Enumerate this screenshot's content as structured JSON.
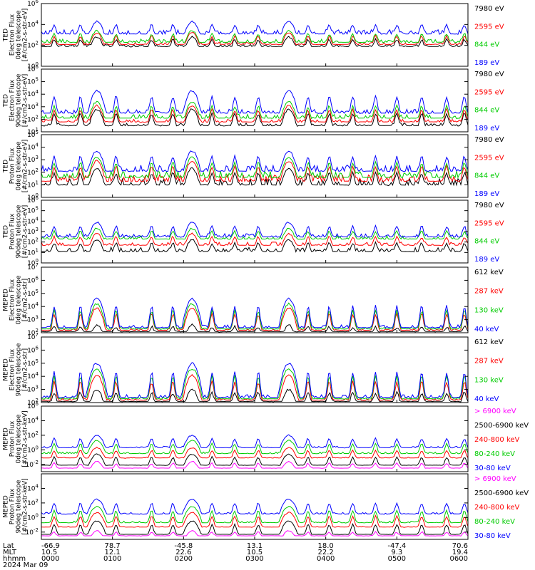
{
  "chart_data": [
    {
      "type": "line",
      "ylabel": [
        "TED",
        "Electron Flux",
        "0deg telescope",
        "[#/cm2-s-str-eV]"
      ],
      "log_y": true,
      "ylim_exp": [
        0,
        6
      ],
      "y_ticks_exp": [
        0,
        2,
        4,
        6
      ],
      "series": [
        {
          "name": "7980 eV",
          "color": "#000000",
          "base": 1.8,
          "peak": 2.8,
          "noise": 0.3
        },
        {
          "name": "2595 eV",
          "color": "#ff0000",
          "base": 2.0,
          "peak": 3.2,
          "noise": 0.3
        },
        {
          "name": "844 eV",
          "color": "#00cc00",
          "base": 2.2,
          "peak": 3.4,
          "noise": 0.4
        },
        {
          "name": "189 eV",
          "color": "#0000ff",
          "base": 3.0,
          "peak": 4.3,
          "noise": 0.5
        }
      ]
    },
    {
      "type": "line",
      "ylabel": [
        "TED",
        "Electron Flux",
        "90deg telescope",
        "[#/cm2-s-str-eV]"
      ],
      "log_y": true,
      "ylim_exp": [
        1,
        6
      ],
      "y_ticks_exp": [
        1,
        2,
        3,
        4,
        5,
        6
      ],
      "series": [
        {
          "name": "7980 eV",
          "color": "#000000",
          "base": 1.4,
          "peak": 2.8,
          "noise": 0.3
        },
        {
          "name": "2595 eV",
          "color": "#ff0000",
          "base": 1.7,
          "peak": 3.1,
          "noise": 0.3
        },
        {
          "name": "844 eV",
          "color": "#00cc00",
          "base": 2.0,
          "peak": 3.4,
          "noise": 0.4
        },
        {
          "name": "189 eV",
          "color": "#0000ff",
          "base": 2.4,
          "peak": 4.3,
          "noise": 0.4
        }
      ]
    },
    {
      "type": "line",
      "ylabel": [
        "TED",
        "Proton Flux",
        "0deg telescope",
        "[#/cm2-s-str-eV]"
      ],
      "log_y": true,
      "ylim_exp": [
        0,
        5
      ],
      "y_ticks_exp": [
        0,
        1,
        2,
        3,
        4,
        5
      ],
      "series": [
        {
          "name": "7980 eV",
          "color": "#000000",
          "base": 0.9,
          "peak": 2.3,
          "noise": 0.6
        },
        {
          "name": "2595 eV",
          "color": "#ff0000",
          "base": 1.2,
          "peak": 2.9,
          "noise": 0.6
        },
        {
          "name": "844 eV",
          "color": "#00cc00",
          "base": 1.5,
          "peak": 3.2,
          "noise": 0.6
        },
        {
          "name": "189 eV",
          "color": "#0000ff",
          "base": 2.0,
          "peak": 3.7,
          "noise": 0.6
        }
      ]
    },
    {
      "type": "line",
      "ylabel": [
        "TED",
        "Proton Flux",
        "90deg telescope",
        "[#/cm2-s-str-eV]"
      ],
      "log_y": true,
      "ylim_exp": [
        0,
        6
      ],
      "y_ticks_exp": [
        0,
        1,
        2,
        3,
        4,
        5,
        6
      ],
      "series": [
        {
          "name": "7980 eV",
          "color": "#000000",
          "base": 1.0,
          "peak": 2.2,
          "noise": 0.5
        },
        {
          "name": "2595 eV",
          "color": "#ff0000",
          "base": 1.6,
          "peak": 2.8,
          "noise": 0.4
        },
        {
          "name": "844 eV",
          "color": "#00cc00",
          "base": 2.2,
          "peak": 3.3,
          "noise": 0.4
        },
        {
          "name": "189 eV",
          "color": "#0000ff",
          "base": 2.4,
          "peak": 3.9,
          "noise": 0.4
        }
      ]
    },
    {
      "type": "line",
      "ylabel": [
        "MEPED",
        "Electron Flux",
        "0deg telescope",
        "[#/cm2-s-str]"
      ],
      "log_y": true,
      "ylim_exp": [
        2,
        7
      ],
      "y_ticks_exp": [
        2,
        3,
        4,
        5,
        6,
        7
      ],
      "series": [
        {
          "name": "612 keV",
          "color": "#000000",
          "base": 2.0,
          "peak": 2.6,
          "noise": 0.1
        },
        {
          "name": "287 keV",
          "color": "#ff0000",
          "base": 2.1,
          "peak": 3.9,
          "noise": 0.2
        },
        {
          "name": "130 keV",
          "color": "#00cc00",
          "base": 2.2,
          "peak": 4.2,
          "noise": 0.2
        },
        {
          "name": "40 keV",
          "color": "#0000ff",
          "base": 2.3,
          "peak": 4.6,
          "noise": 0.3
        }
      ]
    },
    {
      "type": "line",
      "ylabel": [
        "MEPED",
        "Electron Flux",
        "90deg telescope",
        "[#/cm2-s-str]"
      ],
      "log_y": true,
      "ylim_exp": [
        2,
        7
      ],
      "y_ticks_exp": [
        2,
        3,
        4,
        5,
        6,
        7
      ],
      "series": [
        {
          "name": "612 keV",
          "color": "#000000",
          "base": 2.0,
          "peak": 3.0,
          "noise": 0.1
        },
        {
          "name": "287 keV",
          "color": "#ff0000",
          "base": 2.1,
          "peak": 4.1,
          "noise": 0.2
        },
        {
          "name": "130 keV",
          "color": "#00cc00",
          "base": 2.2,
          "peak": 4.6,
          "noise": 0.2
        },
        {
          "name": "40 keV",
          "color": "#0000ff",
          "base": 2.3,
          "peak": 5.0,
          "noise": 0.3
        }
      ]
    },
    {
      "type": "line",
      "ylabel": [
        "MEPED",
        "Proton Flux",
        "0deg telescope",
        "[#/cm2-s-str-keV]"
      ],
      "log_y": true,
      "ylim_exp": [
        -3,
        6
      ],
      "y_ticks_exp": [
        -2,
        0,
        2,
        4,
        6
      ],
      "series": [
        {
          "name": "> 6900 keV",
          "color": "#ff00ff",
          "base": -2.6,
          "peak": -1.6,
          "noise": 0.1
        },
        {
          "name": "2500-6900 keV",
          "color": "#000000",
          "base": -2.2,
          "peak": -0.6,
          "noise": 0.1
        },
        {
          "name": "240-800 keV",
          "color": "#ff0000",
          "base": -1.2,
          "peak": 0.3,
          "noise": 0.2
        },
        {
          "name": "80-240 keV",
          "color": "#00cc00",
          "base": -0.6,
          "peak": 1.3,
          "noise": 0.3
        },
        {
          "name": "30-80 keV",
          "color": "#0000ff",
          "base": 0.2,
          "peak": 2.0,
          "noise": 0.3
        }
      ]
    },
    {
      "type": "line",
      "ylabel": [
        "MEPED",
        "Proton Flux",
        "90deg telescope",
        "[#/cm2-s-str-keV]"
      ],
      "log_y": true,
      "ylim_exp": [
        -3,
        6
      ],
      "y_ticks_exp": [
        -2,
        0,
        2,
        4
      ],
      "series": [
        {
          "name": "> 6900 keV",
          "color": "#ff00ff",
          "base": -2.6,
          "peak": -1.8,
          "noise": 0.1
        },
        {
          "name": "2500-6900 keV",
          "color": "#000000",
          "base": -2.4,
          "peak": -0.5,
          "noise": 0.1
        },
        {
          "name": "240-800 keV",
          "color": "#ff0000",
          "base": -1.4,
          "peak": 0.7,
          "noise": 0.2
        },
        {
          "name": "80-240 keV",
          "color": "#00cc00",
          "base": -0.8,
          "peak": 1.5,
          "noise": 0.3
        },
        {
          "name": "30-80 keV",
          "color": "#0000ff",
          "base": 0.4,
          "peak": 2.5,
          "noise": 0.3
        }
      ]
    }
  ],
  "x_axis": {
    "hhmm_range": [
      "0000",
      "0600"
    ],
    "row_labels": [
      "Lat",
      "MLT",
      "hhmm",
      "2024 Mar 09"
    ],
    "columns": [
      {
        "lat": "-66.9",
        "mlt": "10.5",
        "hhmm": "0000"
      },
      {
        "lat": "78.7",
        "mlt": "12.1",
        "hhmm": "0100"
      },
      {
        "lat": "-45.8",
        "mlt": "22.6",
        "hhmm": "0200"
      },
      {
        "lat": "13.1",
        "mlt": "10.5",
        "hhmm": "0300"
      },
      {
        "lat": "18.0",
        "mlt": "22.2",
        "hhmm": "0400"
      },
      {
        "lat": "-47.4",
        "mlt": "9.3",
        "hhmm": "0500"
      },
      {
        "lat": "70.6",
        "mlt": "19.4",
        "hhmm": "0600"
      }
    ]
  },
  "passes": {
    "major_x_hours": [
      0.78,
      2.12,
      3.48
    ],
    "minor_x_hours": [
      0.18,
      0.55,
      1.05,
      1.55,
      1.85,
      2.4,
      2.72,
      3.05,
      3.75,
      4.05,
      4.38,
      4.7,
      5.0,
      5.35,
      5.7,
      5.95
    ]
  }
}
